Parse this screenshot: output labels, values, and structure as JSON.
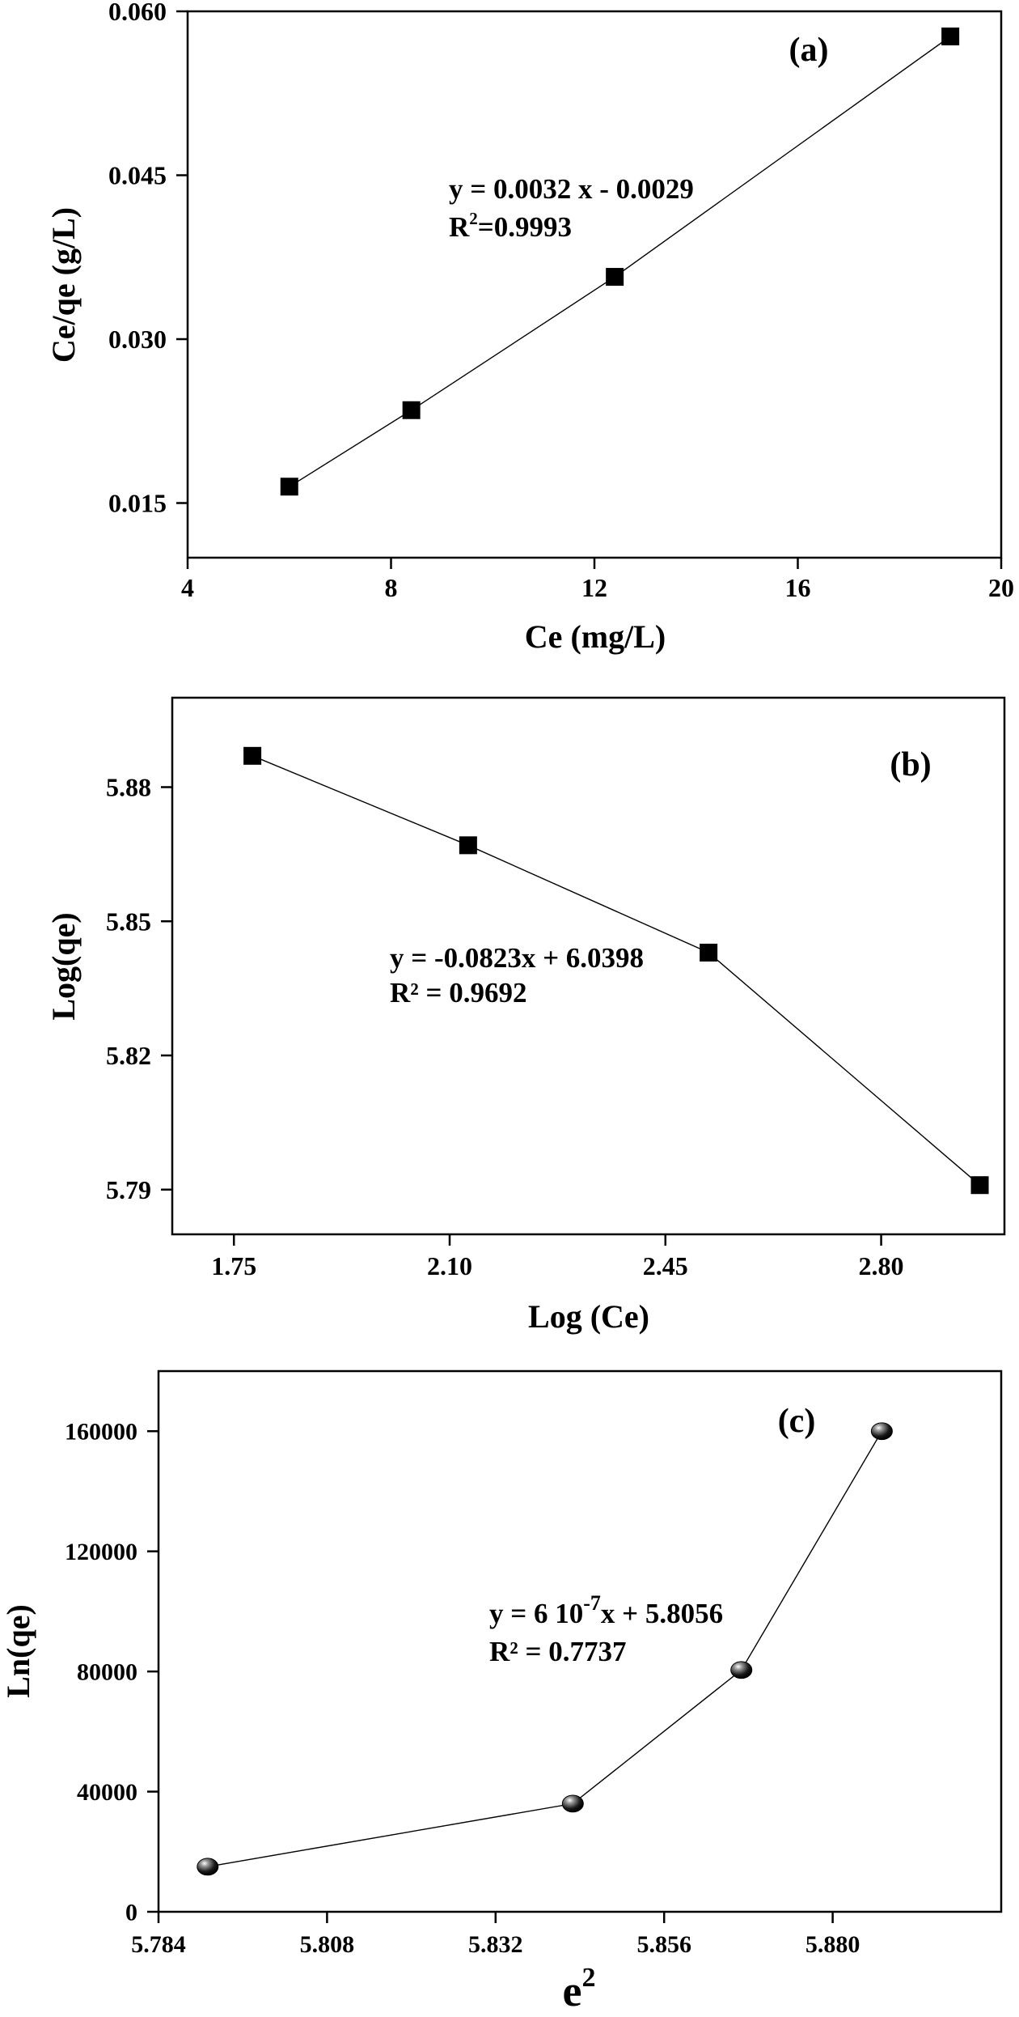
{
  "chart_data": [
    {
      "type": "line",
      "panel_label": "(a)",
      "title": "",
      "xlabel": "Ce (mg/L)",
      "ylabel": "Ce/qe (g/L)",
      "xlim": [
        4,
        20
      ],
      "ylim": [
        0.01,
        0.06
      ],
      "xticks": [
        4,
        8,
        12,
        16,
        20
      ],
      "yticks": [
        0.015,
        0.03,
        0.045,
        0.06
      ],
      "xtick_labels": [
        "4",
        "8",
        "12",
        "16",
        "20"
      ],
      "ytick_labels": [
        "0.015",
        "0.030",
        "0.045",
        "0.060"
      ],
      "marker": "square",
      "series": [
        {
          "x": [
            6.0,
            8.4,
            12.4,
            19.0
          ],
          "y": [
            0.0165,
            0.0235,
            0.0357,
            0.0577
          ]
        }
      ],
      "equation": "y = 0.0032 x - 0.0029",
      "r2_prefix": "R",
      "r2_sup": "2",
      "r2_value": "=0.9993"
    },
    {
      "type": "line",
      "panel_label": "(b)",
      "title": "",
      "xlabel": "Log (Ce)",
      "ylabel": "Log(qe)",
      "xlim": [
        1.65,
        3.0
      ],
      "ylim": [
        5.78,
        5.9
      ],
      "xticks": [
        1.75,
        2.1,
        2.45,
        2.8
      ],
      "yticks": [
        5.79,
        5.82,
        5.85,
        5.88
      ],
      "xtick_labels": [
        "1.75",
        "2.10",
        "2.45",
        "2.80"
      ],
      "ytick_labels": [
        "5.79",
        "5.82",
        "5.85",
        "5.88"
      ],
      "marker": "square",
      "series": [
        {
          "x": [
            1.78,
            2.13,
            2.52,
            2.96
          ],
          "y": [
            5.887,
            5.867,
            5.843,
            5.791
          ]
        }
      ],
      "equation": "y = -0.0823x + 6.0398",
      "r2_line": "R² = 0.9692"
    },
    {
      "type": "line",
      "panel_label": "(c)",
      "title": "",
      "xlabel_base": "e",
      "xlabel_sup": "2",
      "ylabel": "Ln(qe)",
      "xlim": [
        5.784,
        5.904
      ],
      "ylim": [
        0,
        180000
      ],
      "xticks": [
        5.784,
        5.808,
        5.832,
        5.856,
        5.88
      ],
      "yticks": [
        0,
        40000,
        80000,
        120000,
        160000
      ],
      "xtick_labels": [
        "5.784",
        "5.808",
        "5.832",
        "5.856",
        "5.880"
      ],
      "ytick_labels": [
        "0",
        "40000",
        "80000",
        "120000",
        "160000"
      ],
      "marker": "sphere",
      "series": [
        {
          "x": [
            5.791,
            5.843,
            5.867,
            5.887
          ],
          "y": [
            15000,
            36000,
            80500,
            160000
          ]
        }
      ],
      "eq_prefix": "y = 6 10",
      "eq_sup": "-7",
      "eq_suffix": "x + 5.8056",
      "r2_line": "R² = 0.7737"
    }
  ]
}
